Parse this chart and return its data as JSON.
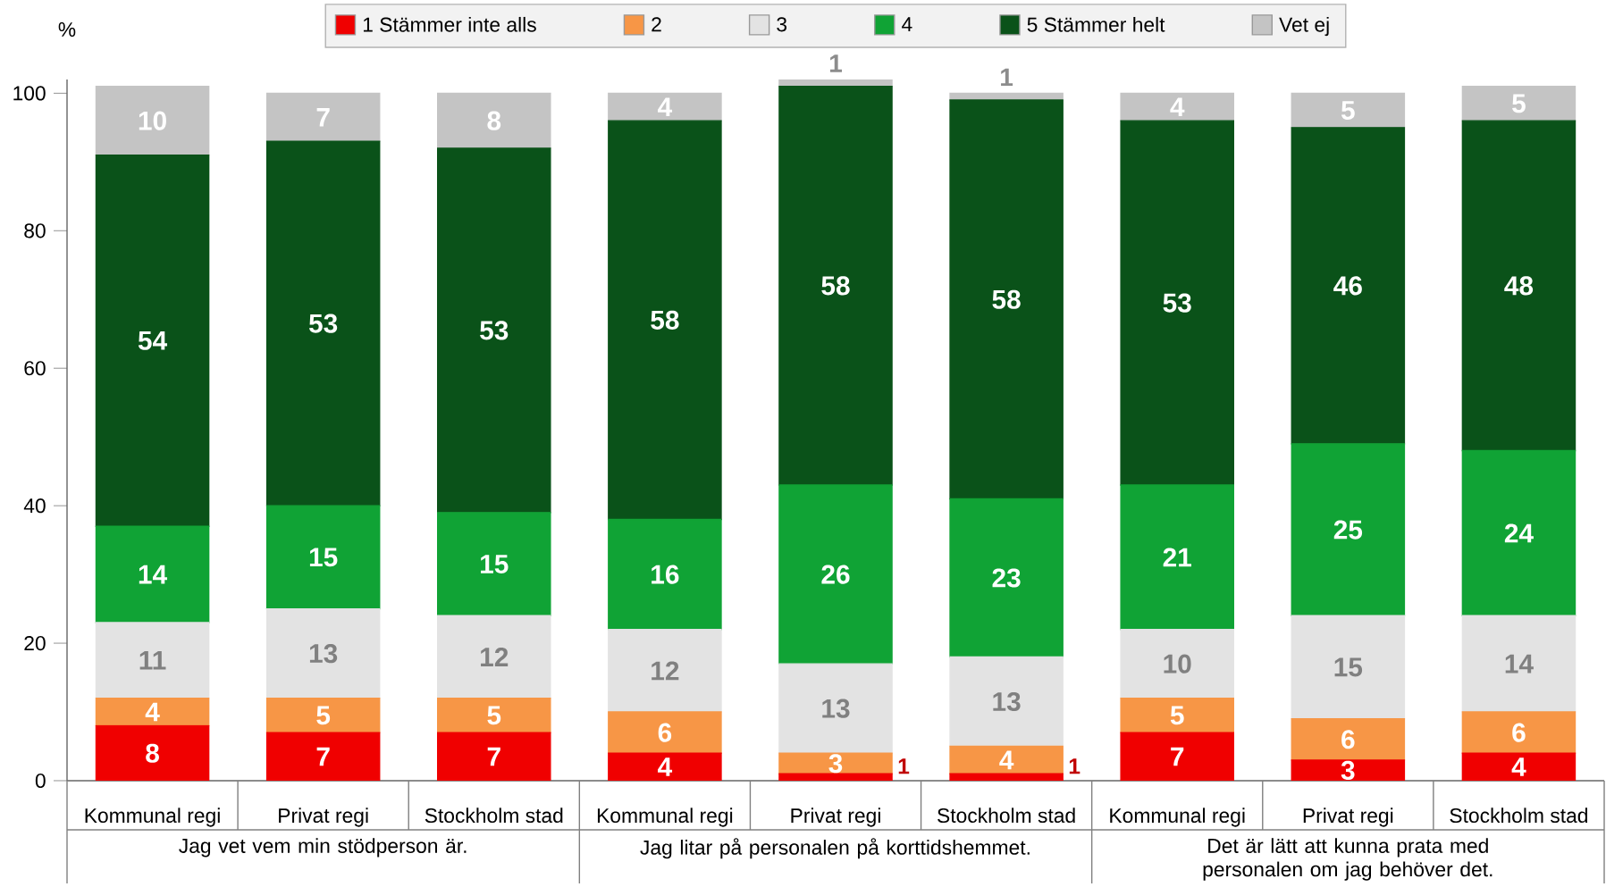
{
  "chart_data": {
    "type": "bar",
    "stacked": true,
    "ylabel": "%",
    "legend": "top",
    "data_labels": true,
    "grid": false,
    "categories": [
      "Kommunal regi",
      "Privat regi",
      "Stockholm stad",
      "Kommunal regi",
      "Privat regi",
      "Stockholm stad",
      "Kommunal regi",
      "Privat regi",
      "Stockholm stad"
    ],
    "annotations": [
      "Jag vet vem min stödperson är.",
      "Jag litar på personalen på korttidshemmet.",
      "Det är lätt att kunna prata med personalen om jag behöver det."
    ],
    "ylim": [
      0,
      102
    ],
    "yticks": [
      0,
      20,
      40,
      60,
      80,
      100
    ],
    "series": [
      {
        "name": "1 Stämmer inte alls",
        "color": "#f00000",
        "values": [
          8,
          7,
          7,
          4,
          1,
          1,
          7,
          3,
          4
        ]
      },
      {
        "name": "2",
        "color": "#f79646",
        "values": [
          4,
          5,
          5,
          6,
          3,
          4,
          5,
          6,
          6
        ]
      },
      {
        "name": "3",
        "color": "#e3e3e3",
        "values": [
          11,
          13,
          12,
          12,
          13,
          13,
          10,
          15,
          14
        ]
      },
      {
        "name": "4",
        "color": "#10a335",
        "values": [
          14,
          15,
          15,
          16,
          26,
          23,
          21,
          25,
          24
        ]
      },
      {
        "name": "5 Stämmer helt",
        "color": "#0a5219",
        "values": [
          54,
          53,
          53,
          58,
          58,
          58,
          53,
          46,
          48
        ]
      },
      {
        "name": "Vet ej",
        "color": "#c4c4c4",
        "values": [
          10,
          7,
          8,
          4,
          1,
          1,
          4,
          5,
          5
        ]
      }
    ]
  }
}
